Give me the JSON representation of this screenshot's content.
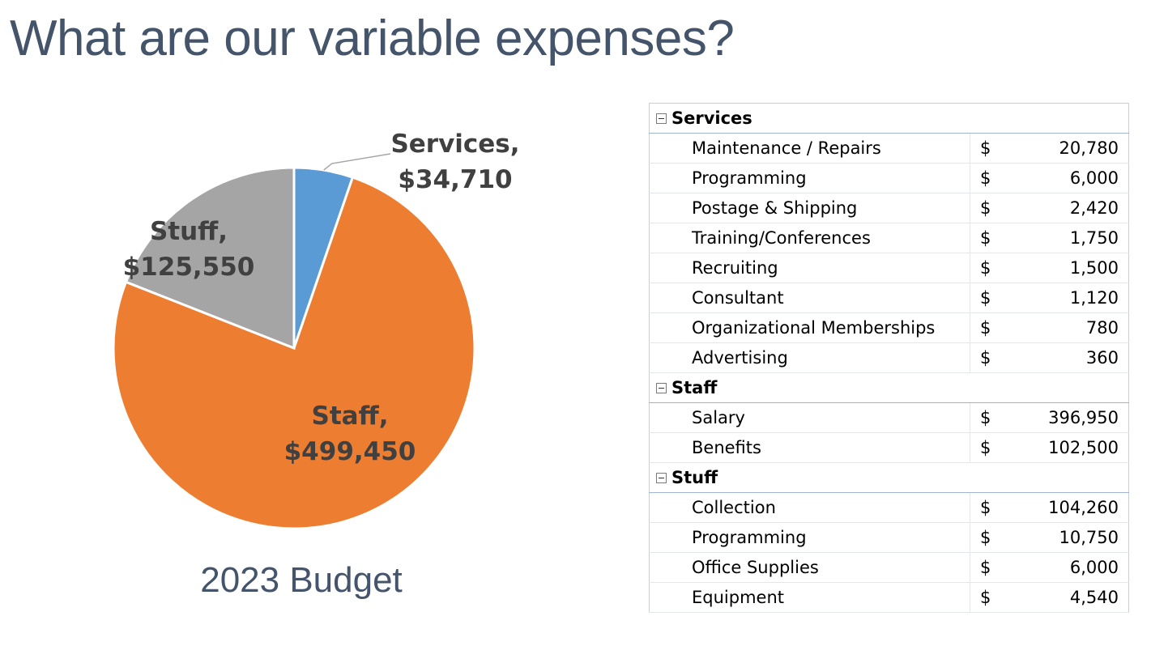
{
  "slide": {
    "title": "What are our variable expenses?",
    "chart_caption": "2023 Budget"
  },
  "colors": {
    "services": "#5b9bd5",
    "staff": "#ed7d31",
    "stuff": "#a5a5a5",
    "title": "#44546a",
    "label": "#404040"
  },
  "chart_data": {
    "type": "pie",
    "title": "2023 Budget",
    "categories": [
      "Services",
      "Staff",
      "Stuff"
    ],
    "values": [
      34710,
      499450,
      125550
    ],
    "labels": [
      {
        "line1": "Services,",
        "line2": "$34,710"
      },
      {
        "line1": "Staff,",
        "line2": "$499,450"
      },
      {
        "line1": "Stuff,",
        "line2": "$125,550"
      }
    ],
    "start_angle_deg": 0,
    "direction": "clockwise"
  },
  "table": {
    "groups": [
      {
        "name": "Services",
        "items": [
          {
            "label": "Maintenance / Repairs",
            "currency": "$",
            "amount": "20,780"
          },
          {
            "label": "Programming",
            "currency": "$",
            "amount": "6,000"
          },
          {
            "label": "Postage & Shipping",
            "currency": "$",
            "amount": "2,420"
          },
          {
            "label": "Training/Conferences",
            "currency": "$",
            "amount": "1,750"
          },
          {
            "label": "Recruiting",
            "currency": "$",
            "amount": "1,500"
          },
          {
            "label": "Consultant",
            "currency": "$",
            "amount": "1,120"
          },
          {
            "label": "Organizational Memberships",
            "currency": "$",
            "amount": "780"
          },
          {
            "label": "Advertising",
            "currency": "$",
            "amount": "360"
          }
        ]
      },
      {
        "name": "Staff",
        "items": [
          {
            "label": "Salary",
            "currency": "$",
            "amount": "396,950"
          },
          {
            "label": "Benefits",
            "currency": "$",
            "amount": "102,500"
          }
        ]
      },
      {
        "name": "Stuff",
        "items": [
          {
            "label": "Collection",
            "currency": "$",
            "amount": "104,260"
          },
          {
            "label": "Programming",
            "currency": "$",
            "amount": "10,750"
          },
          {
            "label": "Office Supplies",
            "currency": "$",
            "amount": "6,000"
          },
          {
            "label": "Equipment",
            "currency": "$",
            "amount": "4,540"
          }
        ]
      }
    ]
  }
}
